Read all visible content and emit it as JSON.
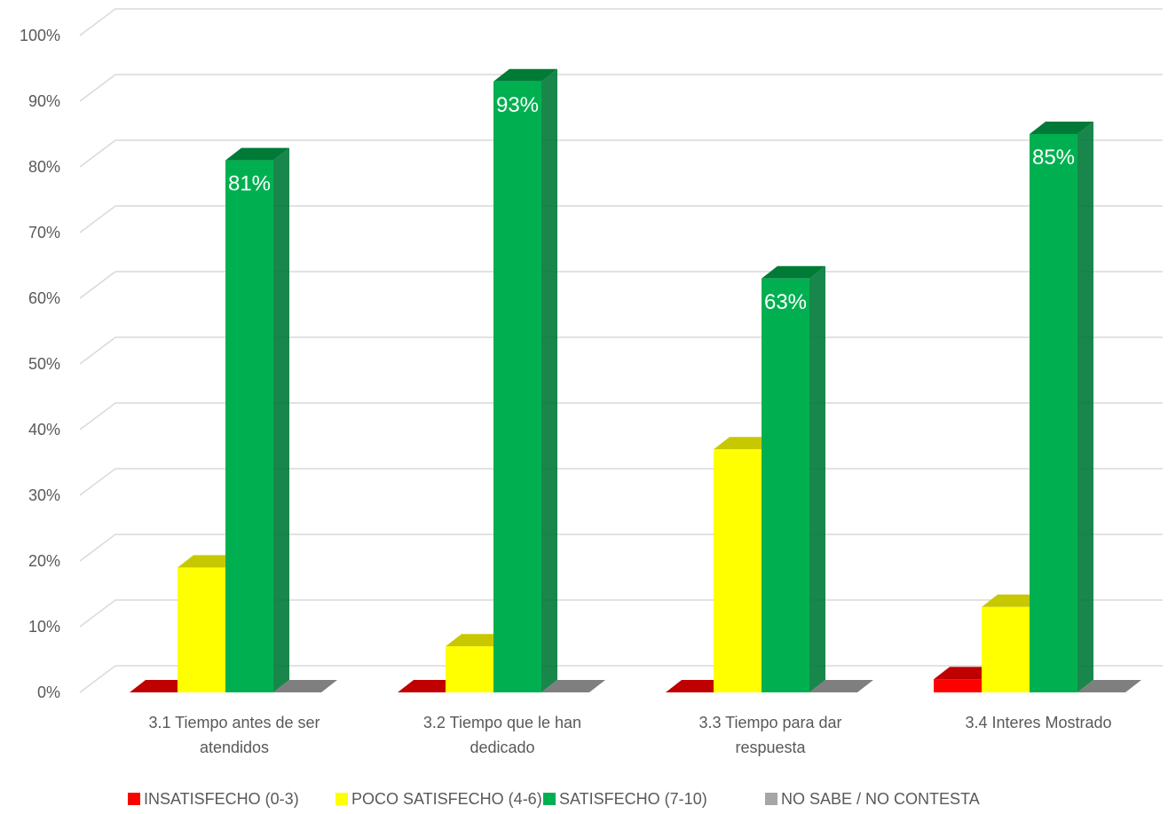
{
  "chart_data": {
    "type": "bar",
    "style": "3d-clustered-column",
    "categories": [
      [
        "3.1 Tiempo antes de ser",
        "atendidos"
      ],
      [
        "3.2 Tiempo que le han",
        "dedicado"
      ],
      [
        "3.3 Tiempo para dar",
        "respuesta"
      ],
      [
        "3.4 Interes Mostrado"
      ]
    ],
    "series": [
      {
        "name": "INSATISFECHO (0-3)",
        "color": "#ff0000",
        "side_color": "#c00000",
        "values": [
          0,
          0,
          0,
          2
        ]
      },
      {
        "name": "POCO SATISFECHO  (4-6)",
        "color": "#ffff00",
        "side_color": "#c8c800",
        "values": [
          19,
          7,
          37,
          13
        ]
      },
      {
        "name": "SATISFECHO  (7-10)",
        "color": "#00b050",
        "side_color": "#007a37",
        "values": [
          81,
          93,
          63,
          85
        ]
      },
      {
        "name": "NO SABE / NO CONTESTA",
        "color": "#a6a6a6",
        "side_color": "#7f7f7f",
        "values": [
          0,
          0,
          0,
          0
        ]
      }
    ],
    "data_labels": [
      {
        "series": 2,
        "category": 0,
        "text": "81%"
      },
      {
        "series": 2,
        "category": 1,
        "text": "93%"
      },
      {
        "series": 2,
        "category": 2,
        "text": "63%"
      },
      {
        "series": 2,
        "category": 3,
        "text": "85%"
      }
    ],
    "y_ticks": [
      "0%",
      "10%",
      "20%",
      "30%",
      "40%",
      "50%",
      "60%",
      "70%",
      "80%",
      "90%",
      "100%"
    ],
    "ylim": [
      0,
      100
    ],
    "grid": true,
    "legend_position": "bottom",
    "title": "",
    "xlabel": "",
    "ylabel": ""
  }
}
